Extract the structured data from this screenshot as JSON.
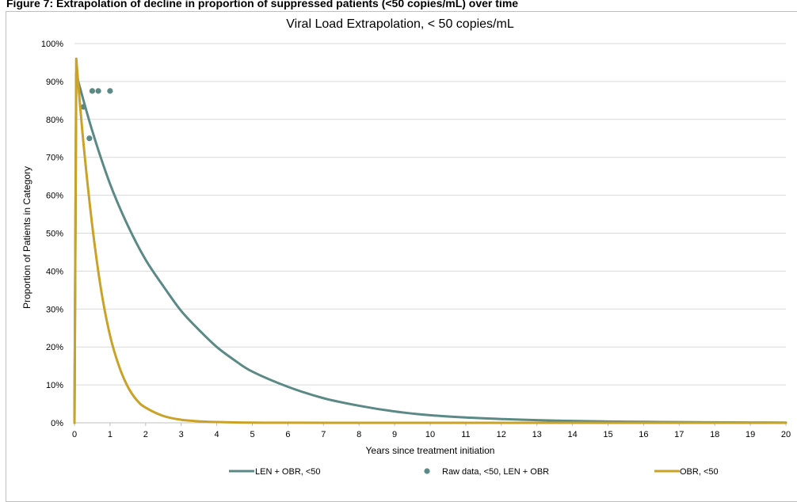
{
  "caption": "Figure 7: Extrapolation of decline in proportion of suppressed patients (<50 copies/mL) over time",
  "colors": {
    "len_obr": "#5b8a86",
    "raw": "#5b8a86",
    "obr": "#c9a227",
    "grid": "#d9d9d9",
    "axis": "#bfbfbf"
  },
  "chart_data": {
    "type": "line",
    "title": "Viral Load Extrapolation, < 50 copies/mL",
    "xlabel": "Years since treatment initiation",
    "ylabel": "Proportion of Patients in Category",
    "xlim": [
      0,
      20
    ],
    "ylim": [
      0,
      100
    ],
    "x_ticks": [
      "0",
      "1",
      "2",
      "3",
      "4",
      "5",
      "6",
      "7",
      "8",
      "9",
      "10",
      "11",
      "12",
      "13",
      "14",
      "15",
      "16",
      "17",
      "18",
      "19",
      "20"
    ],
    "y_ticks": [
      "0%",
      "10%",
      "20%",
      "30%",
      "40%",
      "50%",
      "60%",
      "70%",
      "80%",
      "90%",
      "100%"
    ],
    "grid": "horizontal",
    "legend_position": "bottom",
    "series": [
      {
        "name": "LEN + OBR, <50",
        "kind": "line",
        "x": [
          0,
          0.05,
          0.5,
          1,
          1.5,
          2,
          2.5,
          3,
          3.5,
          4,
          4.5,
          5,
          6,
          7,
          8,
          9,
          10,
          11,
          12,
          13,
          14,
          15,
          16,
          17,
          18,
          19,
          20
        ],
        "y": [
          0,
          92,
          77,
          63,
          52,
          43,
          36,
          29.5,
          24.5,
          20,
          16.5,
          13.5,
          9.5,
          6.5,
          4.5,
          3,
          2,
          1.4,
          1,
          0.7,
          0.5,
          0.35,
          0.25,
          0.18,
          0.12,
          0.08,
          0.05
        ]
      },
      {
        "name": "Raw data, <50, LEN + OBR",
        "kind": "scatter",
        "x": [
          0.25,
          0.42,
          0.5,
          0.67,
          1.0
        ],
        "y": [
          83.3,
          75,
          87.5,
          87.5,
          87.5
        ]
      },
      {
        "name": "OBR, <50",
        "kind": "line",
        "x": [
          0,
          0.05,
          0.25,
          0.5,
          0.75,
          1,
          1.25,
          1.5,
          1.75,
          2,
          2.5,
          3,
          3.5,
          4,
          5,
          6,
          8,
          10,
          15,
          20
        ],
        "y": [
          0,
          96,
          74,
          52,
          35,
          23,
          15,
          9.5,
          6,
          4,
          1.8,
          0.8,
          0.4,
          0.2,
          0.05,
          0.02,
          0,
          0,
          0,
          0
        ]
      }
    ]
  }
}
